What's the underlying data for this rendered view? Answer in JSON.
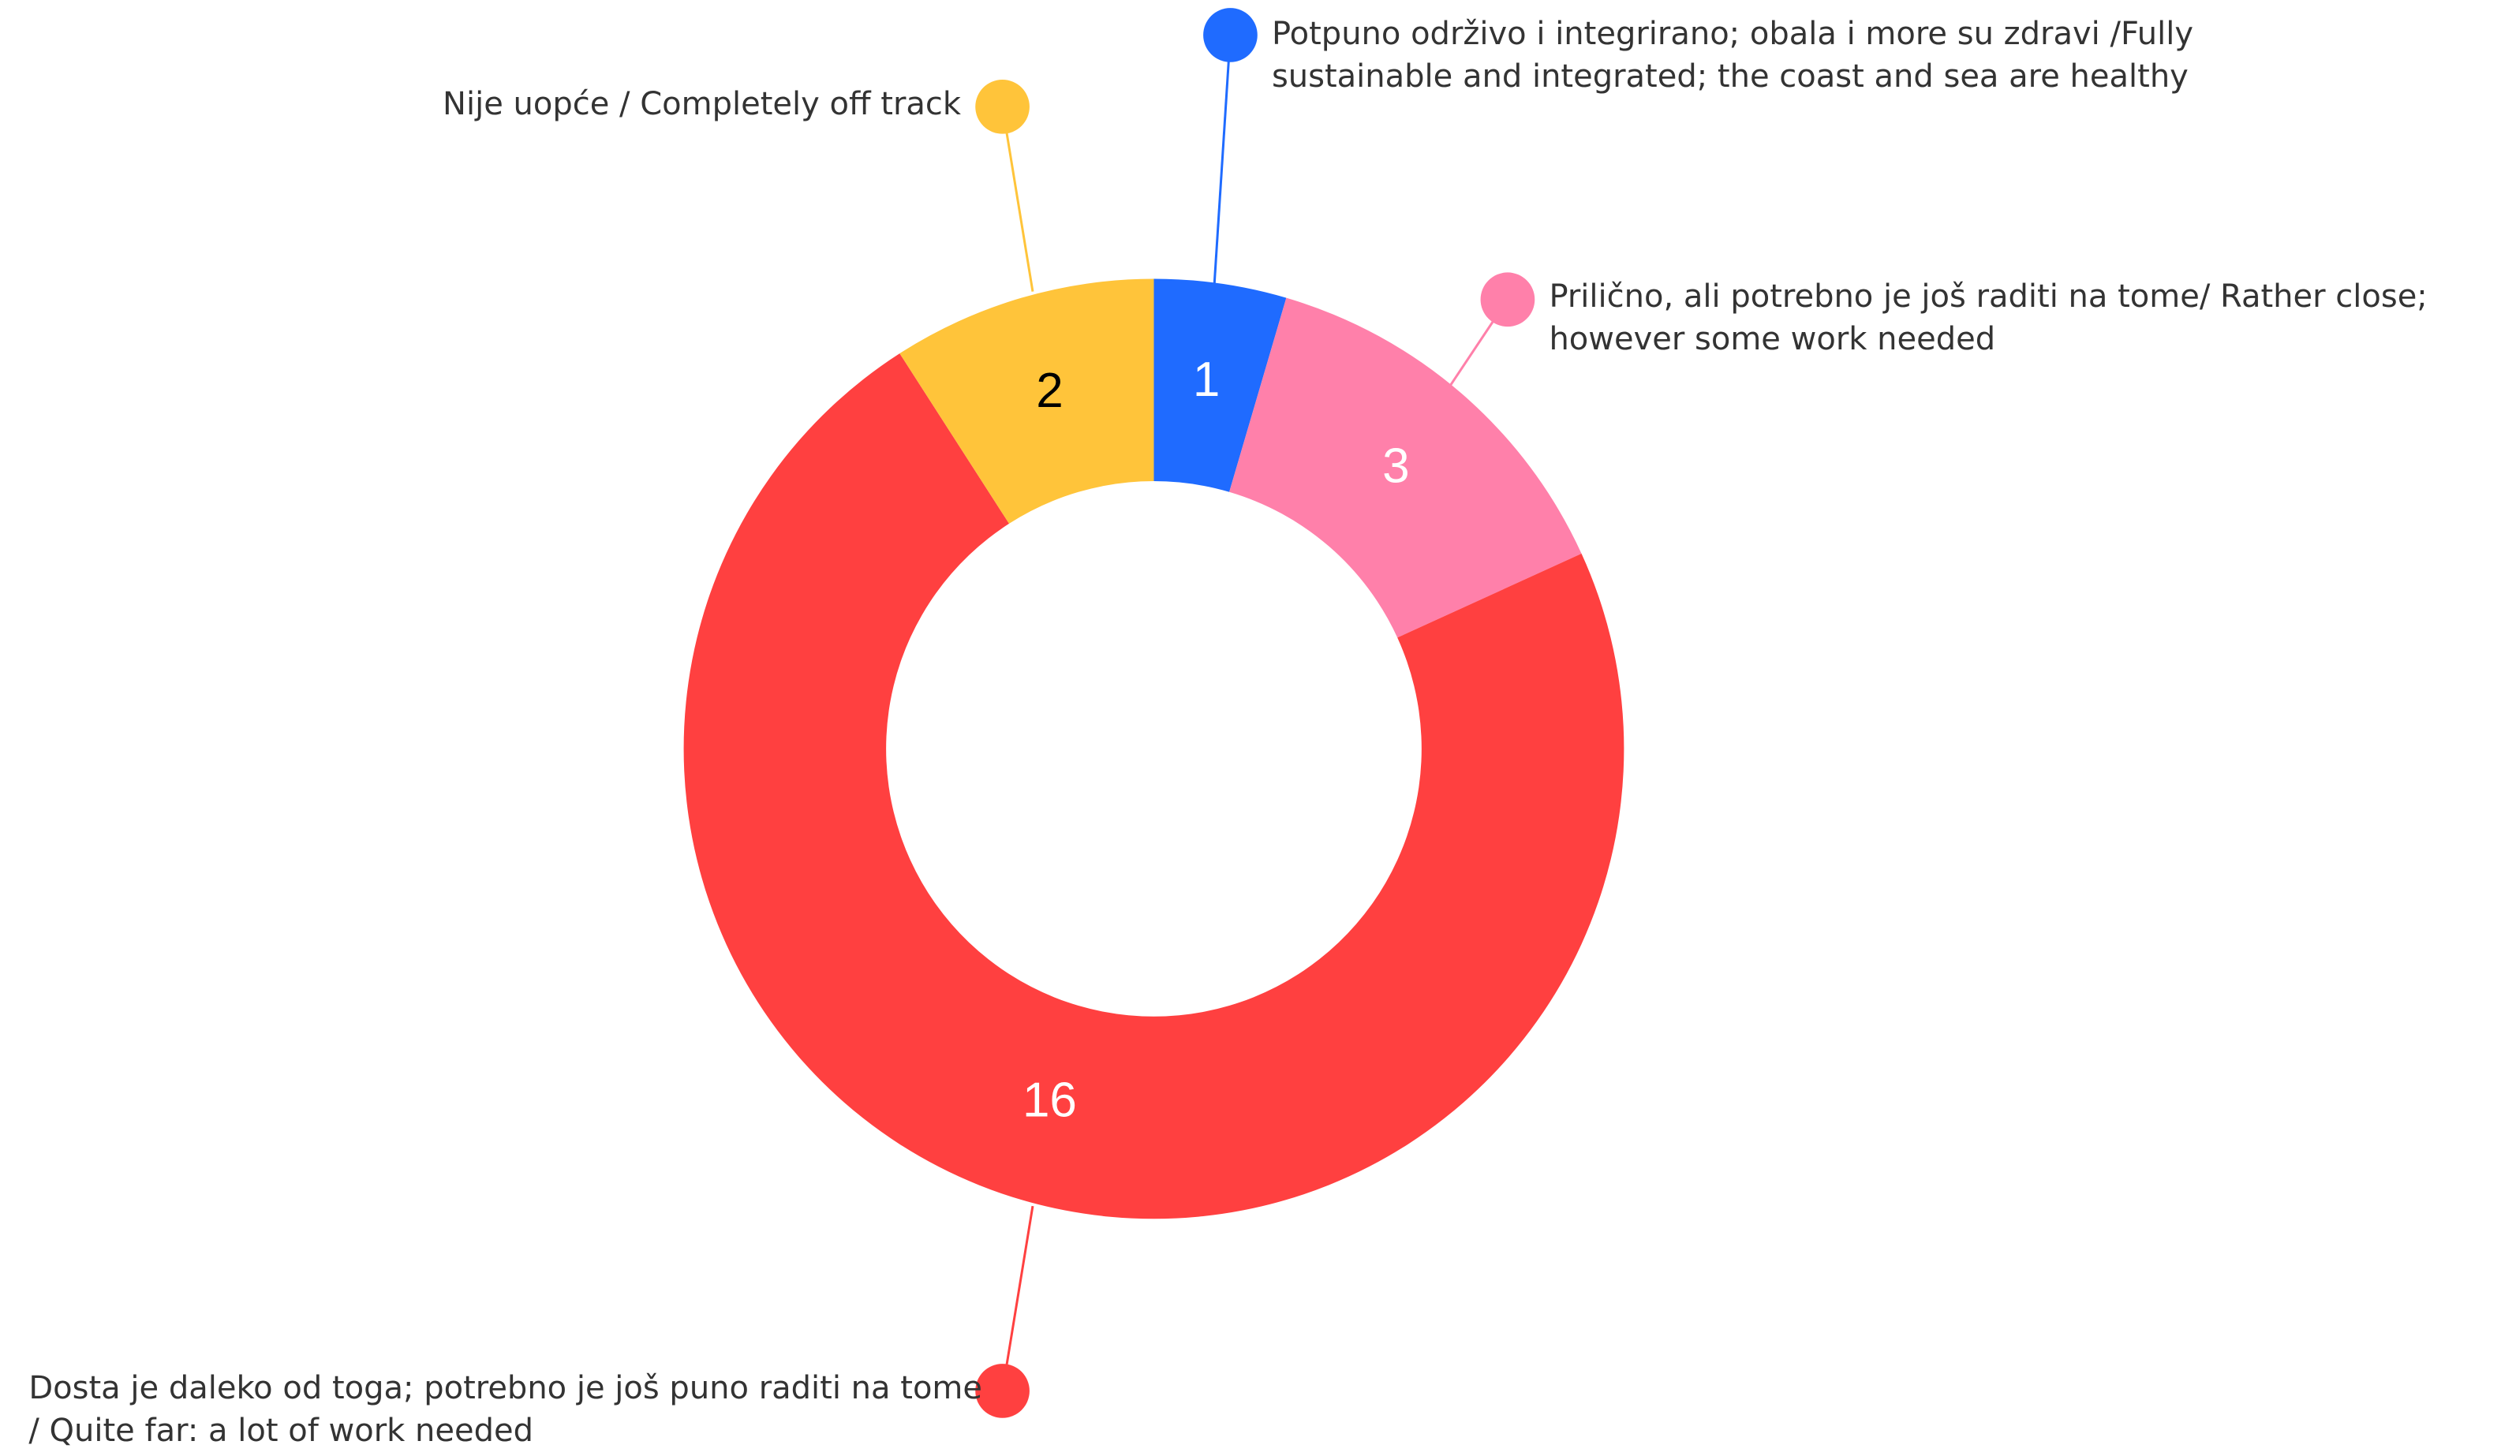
{
  "chart_data": {
    "type": "pie",
    "categories": [
      "Potpuno održivo i integrirano; obala i more su zdravi /Fully sustainable and integrated; the coast and sea are healthy",
      "Prilično, ali potrebno je još raditi na tome/ Rather close; however some work needed",
      "Dosta je daleko od toga; potrebno je još puno raditi na tome / Quite far: a lot of work needed",
      "Nije uopće / Completely off track"
    ],
    "values": [
      1,
      3,
      16,
      2
    ],
    "colors": [
      "#1f6bff",
      "#ff80aa",
      "#ff4040",
      "#ffc43a"
    ],
    "value_label_colors": [
      "#ffffff",
      "#ffffff",
      "#ffffff",
      "#000000"
    ]
  }
}
